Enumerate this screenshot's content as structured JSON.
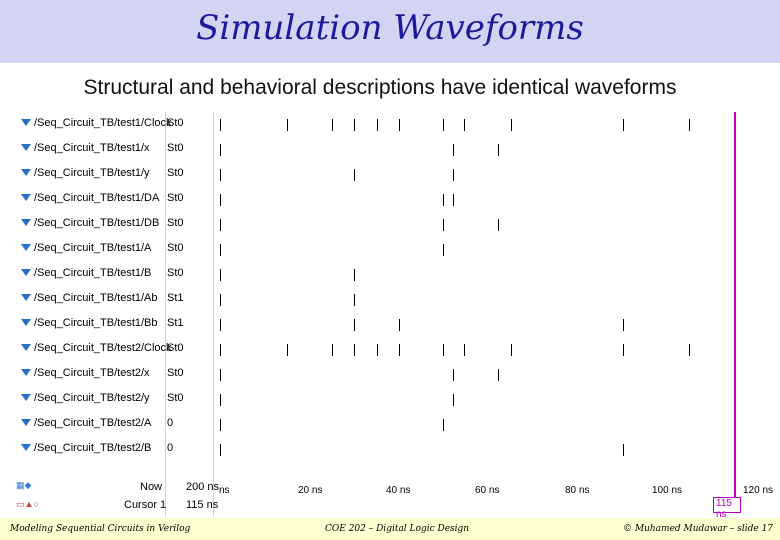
{
  "title": "Simulation Waveforms",
  "subtitle": "Structural and behavioral descriptions have identical waveforms",
  "signals": [
    {
      "name": "/Seq_Circuit_TB/test1/Clock",
      "value": "St0"
    },
    {
      "name": "/Seq_Circuit_TB/test1/x",
      "value": "St0"
    },
    {
      "name": "/Seq_Circuit_TB/test1/y",
      "value": "St0"
    },
    {
      "name": "/Seq_Circuit_TB/test1/DA",
      "value": "St0"
    },
    {
      "name": "/Seq_Circuit_TB/test1/DB",
      "value": "St0"
    },
    {
      "name": "/Seq_Circuit_TB/test1/A",
      "value": "St0"
    },
    {
      "name": "/Seq_Circuit_TB/test1/B",
      "value": "St0"
    },
    {
      "name": "/Seq_Circuit_TB/test1/Ab",
      "value": "St1"
    },
    {
      "name": "/Seq_Circuit_TB/test1/Bb",
      "value": "St1"
    },
    {
      "name": "/Seq_Circuit_TB/test2/Clock",
      "value": "St0"
    },
    {
      "name": "/Seq_Circuit_TB/test2/x",
      "value": "St0"
    },
    {
      "name": "/Seq_Circuit_TB/test2/y",
      "value": "St0"
    },
    {
      "name": "/Seq_Circuit_TB/test2/A",
      "value": "0"
    },
    {
      "name": "/Seq_Circuit_TB/test2/B",
      "value": "0"
    }
  ],
  "status": {
    "now_label": "Now",
    "now_value": "200 ns",
    "cursor_label": "Cursor 1",
    "cursor_value": "115 ns"
  },
  "ruler": {
    "labels": [
      "ns",
      "20 ns",
      "40 ns",
      "60 ns",
      "80 ns",
      "100 ns",
      "120 ns"
    ],
    "cursor_tag": "115 ns",
    "range_ns": [
      0,
      125
    ]
  },
  "footer": {
    "left": "Modeling Sequential Circuits in Verilog",
    "center": "COE 202 – Digital Logic Design",
    "right": "© Muhamed Mudawar – slide 17"
  },
  "colors": {
    "title_bg": "#d3d3f3",
    "title_text": "#1b1b9a",
    "cursor": "#c000c0",
    "footer_bg": "#ffffd0",
    "signal_icon": "#2a6fc6"
  }
}
